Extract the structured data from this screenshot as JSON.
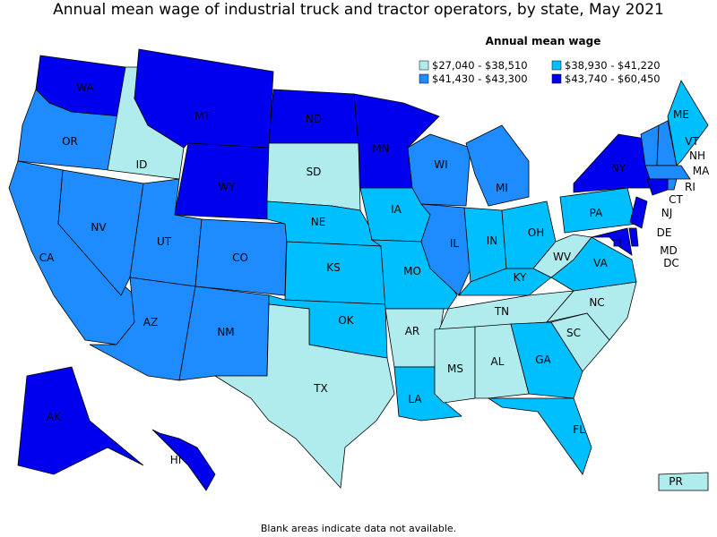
{
  "title": "Annual mean wage of industrial truck and tractor operators, by state, May 2021",
  "legend": {
    "title": "Annual mean wage",
    "bins": [
      {
        "label": "$27,040 - $38,510",
        "color": "#b0ecee"
      },
      {
        "label": "$38,930 - $41,220",
        "color": "#00bfff"
      },
      {
        "label": "$41,430 - $43,300",
        "color": "#1e8cff"
      },
      {
        "label": "$43,740 - $60,450",
        "color": "#0000ee"
      }
    ]
  },
  "states": [
    {
      "label": "WA",
      "bin": 3
    },
    {
      "label": "OR",
      "bin": 2
    },
    {
      "label": "CA",
      "bin": 2
    },
    {
      "label": "NV",
      "bin": 2
    },
    {
      "label": "ID",
      "bin": 0
    },
    {
      "label": "MT",
      "bin": 3
    },
    {
      "label": "WY",
      "bin": 3
    },
    {
      "label": "UT",
      "bin": 2
    },
    {
      "label": "CO",
      "bin": 2
    },
    {
      "label": "AZ",
      "bin": 2
    },
    {
      "label": "NM",
      "bin": 2
    },
    {
      "label": "ND",
      "bin": 3
    },
    {
      "label": "SD",
      "bin": 0
    },
    {
      "label": "NE",
      "bin": 1
    },
    {
      "label": "KS",
      "bin": 1
    },
    {
      "label": "OK",
      "bin": 1
    },
    {
      "label": "TX",
      "bin": 0
    },
    {
      "label": "MN",
      "bin": 3
    },
    {
      "label": "IA",
      "bin": 1
    },
    {
      "label": "MO",
      "bin": 1
    },
    {
      "label": "AR",
      "bin": 0
    },
    {
      "label": "LA",
      "bin": 1
    },
    {
      "label": "WI",
      "bin": 2
    },
    {
      "label": "IL",
      "bin": 2
    },
    {
      "label": "MI",
      "bin": 2
    },
    {
      "label": "IN",
      "bin": 1
    },
    {
      "label": "OH",
      "bin": 1
    },
    {
      "label": "KY",
      "bin": 1
    },
    {
      "label": "TN",
      "bin": 0
    },
    {
      "label": "MS",
      "bin": 0
    },
    {
      "label": "AL",
      "bin": 0
    },
    {
      "label": "GA",
      "bin": 1
    },
    {
      "label": "FL",
      "bin": 1
    },
    {
      "label": "SC",
      "bin": 0
    },
    {
      "label": "NC",
      "bin": 0
    },
    {
      "label": "VA",
      "bin": 1
    },
    {
      "label": "WV",
      "bin": 0
    },
    {
      "label": "PA",
      "bin": 1
    },
    {
      "label": "NY",
      "bin": 3
    },
    {
      "label": "VT",
      "bin": 2
    },
    {
      "label": "NH",
      "bin": 2
    },
    {
      "label": "ME",
      "bin": 1
    },
    {
      "label": "MA",
      "bin": 2
    },
    {
      "label": "RI",
      "bin": 2
    },
    {
      "label": "CT",
      "bin": 3
    },
    {
      "label": "NJ",
      "bin": 3
    },
    {
      "label": "DE",
      "bin": 3
    },
    {
      "label": "MD",
      "bin": 3
    },
    {
      "label": "DC",
      "bin": 3
    },
    {
      "label": "AK",
      "bin": 3
    },
    {
      "label": "HI",
      "bin": 3
    },
    {
      "label": "PR",
      "bin": 0
    }
  ],
  "note": "Blank areas indicate data not available."
}
